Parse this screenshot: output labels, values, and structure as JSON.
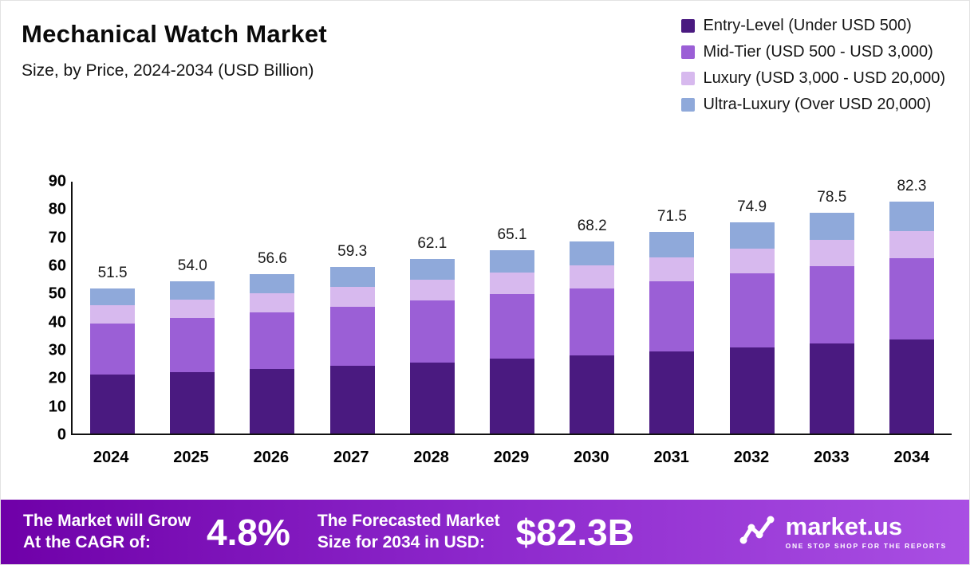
{
  "header": {
    "title": "Mechanical Watch Market",
    "subtitle": "Size, by Price, 2024-2034 (USD Billion)"
  },
  "chart_data": {
    "type": "bar",
    "stacked": true,
    "title": "Mechanical Watch Market Size, by Price, 2024-2034 (USD Billion)",
    "categories": [
      "2024",
      "2025",
      "2026",
      "2027",
      "2028",
      "2029",
      "2030",
      "2031",
      "2032",
      "2033",
      "2034"
    ],
    "series": [
      {
        "name": "Entry-Level (Under USD 500)",
        "color": "#4a1a80",
        "values": [
          21.0,
          21.8,
          22.8,
          24.0,
          25.2,
          26.5,
          27.8,
          29.2,
          30.5,
          32.0,
          33.5
        ]
      },
      {
        "name": "Mid-Tier (USD 500 - USD 3,000)",
        "color": "#9b5fd6",
        "values": [
          18.0,
          19.2,
          20.2,
          21.0,
          22.0,
          23.0,
          23.8,
          25.0,
          26.3,
          27.5,
          28.8
        ]
      },
      {
        "name": "Luxury (USD 3,000 - USD 20,000)",
        "color": "#d7b9ee",
        "values": [
          6.5,
          6.6,
          6.8,
          7.0,
          7.3,
          7.6,
          8.0,
          8.4,
          8.8,
          9.2,
          9.7
        ]
      },
      {
        "name": "Ultra-Luxury (Over USD 20,000)",
        "color": "#8fa9da",
        "values": [
          6.0,
          6.4,
          6.8,
          7.3,
          7.6,
          8.0,
          8.6,
          8.9,
          9.3,
          9.8,
          10.3
        ]
      }
    ],
    "totals": [
      "51.5",
      "54.0",
      "56.6",
      "59.3",
      "62.1",
      "65.1",
      "68.2",
      "71.5",
      "74.9",
      "78.5",
      "82.3"
    ],
    "ylim": [
      0,
      90
    ],
    "yticks": [
      0,
      10,
      20,
      30,
      40,
      50,
      60,
      70,
      80,
      90
    ],
    "grid": false,
    "legend_position": "top-right"
  },
  "footer": {
    "cagr_label_line1": "The Market will Grow",
    "cagr_label_line2": "At the CAGR of:",
    "cagr_value": "4.8%",
    "forecast_label_line1": "The Forecasted Market",
    "forecast_label_line2": "Size for 2034 in USD:",
    "forecast_value": "$82.3B",
    "brand_name": "market.us",
    "brand_tagline": "ONE STOP SHOP FOR THE REPORTS"
  }
}
